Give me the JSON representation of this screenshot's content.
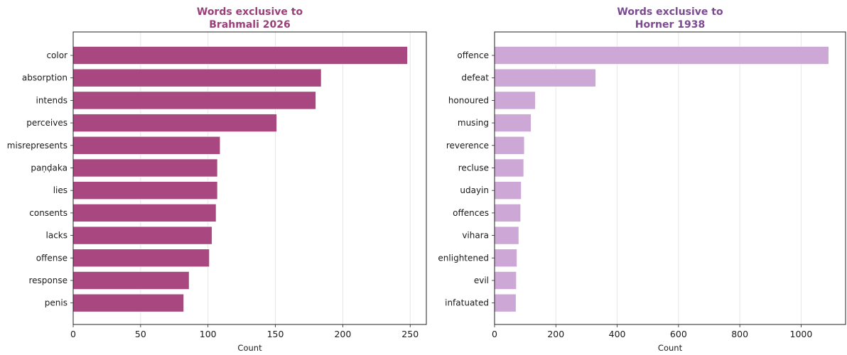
{
  "chart_data": [
    {
      "type": "bar",
      "orientation": "horizontal",
      "title": [
        "Words exclusive to",
        "Brahmali 2026"
      ],
      "title_color": "#9B3F78",
      "bar_color": "#A94780",
      "xlabel": "Count",
      "ylabel": "",
      "xlim": [
        0,
        262
      ],
      "xticks": [
        0,
        50,
        100,
        150,
        200,
        250
      ],
      "grid": "vertical",
      "categories": [
        "color",
        "absorption",
        "intends",
        "perceives",
        "misrepresents",
        "paṇḍaka",
        "lies",
        "consents",
        "lacks",
        "offense",
        "response",
        "penis"
      ],
      "values": [
        248,
        184,
        180,
        151,
        109,
        107,
        107,
        106,
        103,
        101,
        86,
        82
      ]
    },
    {
      "type": "bar",
      "orientation": "horizontal",
      "title": [
        "Words exclusive to",
        "Horner 1938"
      ],
      "title_color": "#7B4A90",
      "bar_color": "#CDA8D6",
      "xlabel": "Count",
      "ylabel": "",
      "xlim": [
        0,
        1145
      ],
      "xticks": [
        0,
        200,
        400,
        600,
        800,
        1000
      ],
      "grid": "vertical",
      "categories": [
        "offence",
        "defeat",
        "honoured",
        "musing",
        "reverence",
        "recluse",
        "udayin",
        "offences",
        "vihara",
        "enlightened",
        "evil",
        "infatuated"
      ],
      "values": [
        1090,
        330,
        133,
        119,
        97,
        95,
        87,
        85,
        79,
        73,
        71,
        70
      ]
    }
  ]
}
